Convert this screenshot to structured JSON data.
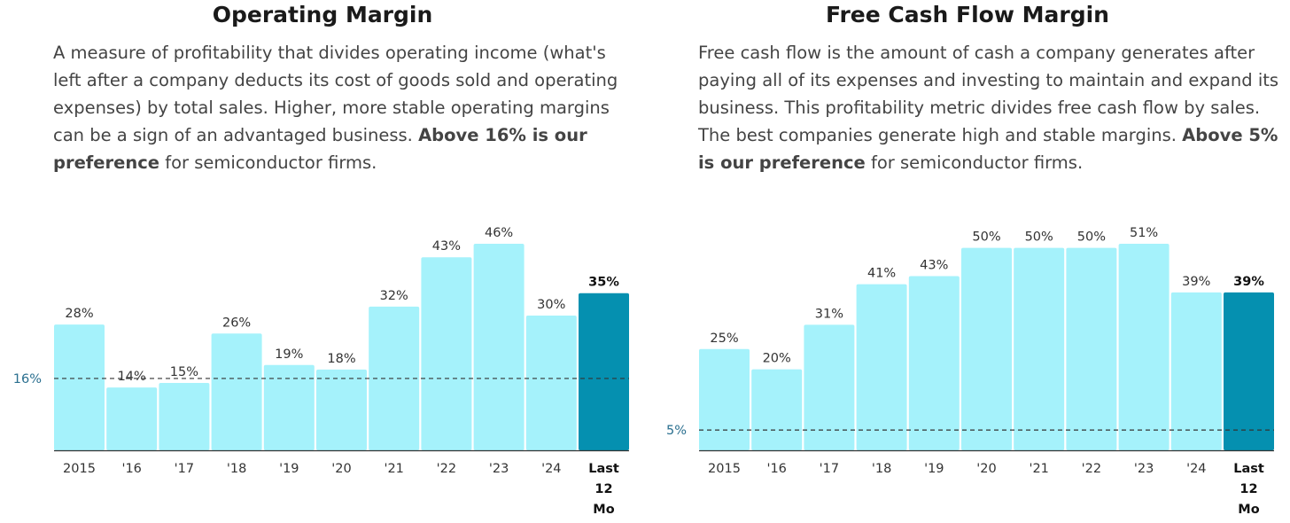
{
  "colors": {
    "bar": "#a5f2fb",
    "bar_highlight": "#0590b0",
    "reference_line": "#333333",
    "axis": "#333333"
  },
  "charts": [
    {
      "title": "Operating Margin",
      "description": {
        "text": "A measure of profitability that divides operating income (what's left after a company deducts its cost of goods sold and operating expenses) by total sales. Higher, more stable operating margins can be a sign of an advantaged business.",
        "bold": "Above 16% is our preference",
        "tail": "for semiconductor firms."
      }
    },
    {
      "title": "Free Cash Flow Margin",
      "description": {
        "text": "Free cash flow is the amount of cash a company generates after paying all of its expenses and investing to maintain and expand its business. This profitability metric divides free cash flow by sales. The best companies generate high and stable margins.",
        "bold": "Above 5% is our preference",
        "tail": "for semiconductor firms."
      }
    }
  ],
  "chart_data": [
    {
      "type": "bar",
      "title": "Operating Margin",
      "categories": [
        "2015",
        "'16",
        "'17",
        "'18",
        "'19",
        "'20",
        "'21",
        "'22",
        "'23",
        "'24",
        "Last 12 Mo"
      ],
      "values": [
        28,
        14,
        15,
        26,
        19,
        18,
        32,
        43,
        46,
        30,
        35
      ],
      "value_labels": [
        "28%",
        "14%",
        "15%",
        "26%",
        "19%",
        "18%",
        "32%",
        "43%",
        "46%",
        "30%",
        "35%"
      ],
      "highlight_index": 10,
      "reference": {
        "value": 16,
        "label": "16%"
      },
      "ylim": [
        0,
        46
      ]
    },
    {
      "type": "bar",
      "title": "Free Cash Flow Margin",
      "categories": [
        "2015",
        "'16",
        "'17",
        "'18",
        "'19",
        "'20",
        "'21",
        "'22",
        "'23",
        "'24",
        "Last 12 Mo"
      ],
      "values": [
        25,
        20,
        31,
        41,
        43,
        50,
        50,
        50,
        51,
        39,
        39
      ],
      "value_labels": [
        "25%",
        "20%",
        "31%",
        "41%",
        "43%",
        "50%",
        "50%",
        "50%",
        "51%",
        "39%",
        "39%"
      ],
      "highlight_index": 10,
      "reference": {
        "value": 5,
        "label": "5%"
      },
      "ylim": [
        0,
        51
      ]
    }
  ]
}
